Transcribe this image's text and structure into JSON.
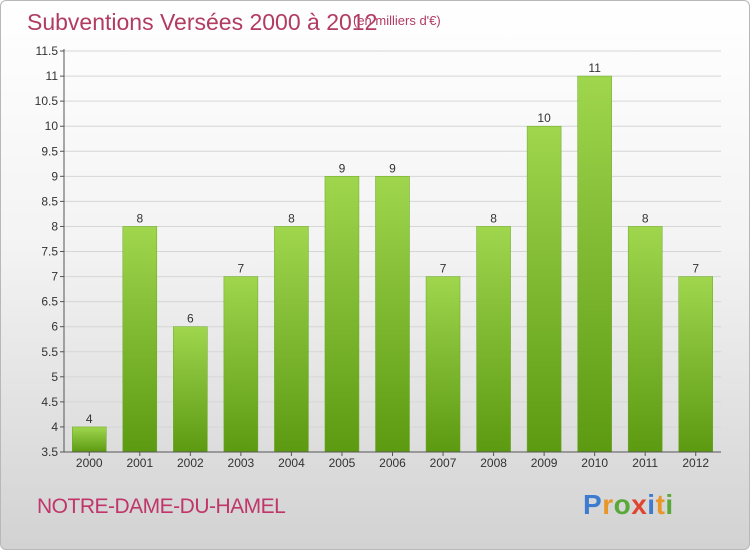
{
  "header": {
    "title": "Subventions Versées 2000 à 2012",
    "subtitle": "(en milliers d'€)"
  },
  "footer": {
    "commune": "NOTRE-DAME-DU-HAMEL",
    "logo": "Proxiti"
  },
  "chart_data": {
    "type": "bar",
    "categories": [
      "2000",
      "2001",
      "2002",
      "2003",
      "2004",
      "2005",
      "2006",
      "2007",
      "2008",
      "2009",
      "2010",
      "2011",
      "2012"
    ],
    "values": [
      4,
      8,
      6,
      7,
      8,
      9,
      9,
      7,
      8,
      10,
      11,
      8,
      7
    ],
    "data_labels": [
      "4",
      "8",
      "6",
      "7",
      "8",
      "9",
      "9",
      "7",
      "8",
      "10",
      "11",
      "8",
      "7"
    ],
    "y_ticks": [
      "3.5",
      "4",
      "4.5",
      "5",
      "5.5",
      "6",
      "6.5",
      "7",
      "7.5",
      "8",
      "8.5",
      "9",
      "9.5",
      "10",
      "10.5",
      "11",
      "11.5"
    ],
    "ylim": [
      3.5,
      11.5
    ],
    "grid": true,
    "bar_color": "#7cb82f"
  }
}
